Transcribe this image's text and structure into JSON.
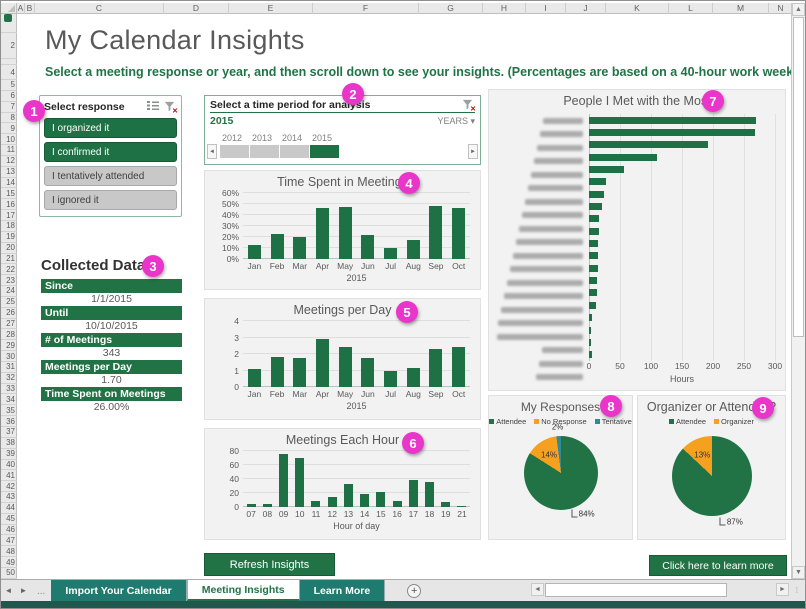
{
  "window": {
    "columns": [
      "A",
      "B",
      "C",
      "D",
      "E",
      "F",
      "G",
      "H",
      "I",
      "J",
      "K",
      "L",
      "M",
      "N"
    ],
    "rows": [
      "2",
      "4",
      "5",
      "6",
      "7",
      "8",
      "9",
      "10",
      "11",
      "12",
      "13",
      "14",
      "15",
      "16",
      "17",
      "18",
      "19",
      "20",
      "21",
      "22",
      "23",
      "24",
      "25",
      "26",
      "27",
      "28",
      "29",
      "30",
      "31",
      "32",
      "33",
      "34",
      "35",
      "36",
      "37",
      "38",
      "39",
      "40",
      "41",
      "42",
      "43",
      "44",
      "45",
      "46",
      "47",
      "48",
      "49",
      "50"
    ]
  },
  "header": {
    "title": "My Calendar Insights",
    "subtitle": "Select a meeting response or year, and then scroll down to see your insights. (Percentages are based on a 40-hour work week.)"
  },
  "slicer": {
    "title": "Select response",
    "items": [
      {
        "label": "I organized it",
        "selected": true
      },
      {
        "label": "I confirmed it",
        "selected": true
      },
      {
        "label": "I tentatively attended",
        "selected": false
      },
      {
        "label": "I ignored it",
        "selected": false
      }
    ]
  },
  "timeline": {
    "title": "Select a time period for analysis",
    "selected_period": "2015",
    "level_selector": "YEARS",
    "years": [
      {
        "label": "2012",
        "selected": false
      },
      {
        "label": "2013",
        "selected": false
      },
      {
        "label": "2014",
        "selected": false
      },
      {
        "label": "2015",
        "selected": true
      }
    ]
  },
  "collected_data": {
    "title": "Collected Data",
    "rows": [
      {
        "label": "Since",
        "value": "1/1/2015"
      },
      {
        "label": "Until",
        "value": "10/10/2015"
      },
      {
        "label": "# of Meetings",
        "value": "343"
      },
      {
        "label": "Meetings per Day",
        "value": "1.70"
      },
      {
        "label": "Time Spent on Meetings",
        "value": "26.00%"
      }
    ]
  },
  "actions": {
    "refresh": "Refresh Insights",
    "learn_more": "Click here to learn more"
  },
  "sheet_tabs": [
    {
      "label": "Import Your Calendar",
      "active": false
    },
    {
      "label": "Meeting Insights",
      "active": true
    },
    {
      "label": "Learn More",
      "active": false
    }
  ],
  "callouts": [
    "1",
    "2",
    "3",
    "4",
    "5",
    "6",
    "7",
    "8",
    "9"
  ],
  "colors": {
    "accent_green": "#217346",
    "bar_green": "#1e7145",
    "orange": "#f5a01e",
    "teal": "#2e8c96",
    "callout_pink": "#e935c9",
    "tab_teal": "#1f7a6f"
  },
  "chart_data": [
    {
      "type": "bar",
      "title": "Time Spent in Meetings",
      "categories": [
        "Jan",
        "Feb",
        "Mar",
        "Apr",
        "May",
        "Jun",
        "Jul",
        "Aug",
        "Sep",
        "Oct"
      ],
      "values": [
        13,
        23,
        20,
        46,
        47,
        22,
        10,
        17,
        48,
        46
      ],
      "yticks": [
        "0%",
        "10%",
        "20%",
        "30%",
        "40%",
        "50%",
        "60%"
      ],
      "ymax": 60,
      "xlabel": "2015",
      "grid": true,
      "unit": "percent"
    },
    {
      "type": "bar",
      "title": "Meetings per Day",
      "categories": [
        "Jan",
        "Feb",
        "Mar",
        "Apr",
        "May",
        "Jun",
        "Jul",
        "Aug",
        "Sep",
        "Oct"
      ],
      "values": [
        1.1,
        1.8,
        1.75,
        2.9,
        2.45,
        1.75,
        1.0,
        1.15,
        2.3,
        2.45
      ],
      "yticks": [
        "0",
        "1",
        "2",
        "3",
        "4"
      ],
      "ymax": 4,
      "xlabel": "2015",
      "grid": true,
      "unit": "count"
    },
    {
      "type": "bar",
      "title": "Meetings Each Hour",
      "categories": [
        "07",
        "08",
        "09",
        "10",
        "11",
        "12",
        "13",
        "14",
        "15",
        "16",
        "17",
        "18",
        "19",
        "21"
      ],
      "values": [
        5,
        4,
        76,
        70,
        9,
        15,
        33,
        19,
        22,
        8,
        38,
        36,
        7,
        2
      ],
      "yticks": [
        "0",
        "20",
        "40",
        "60",
        "80"
      ],
      "ymax": 80,
      "xlabel": "Hour of day",
      "grid": true,
      "unit": "count"
    },
    {
      "type": "hbar",
      "title": "People I Met with the Most",
      "names_redacted": true,
      "values": [
        270,
        268,
        192,
        110,
        57,
        28,
        24,
        21,
        16,
        16,
        15,
        14,
        14,
        13,
        13,
        12,
        5,
        4,
        4,
        5
      ],
      "xticks": [
        "0",
        "50",
        "100",
        "150",
        "200",
        "250",
        "300"
      ],
      "xmax": 300,
      "xlabel": "Hours",
      "grid": true
    },
    {
      "type": "pie",
      "title": "My Responses",
      "legend_position": "top",
      "slices": [
        {
          "label": "Attendee",
          "value": 84,
          "color": "#217346"
        },
        {
          "label": "No Response",
          "value": 14,
          "color": "#f5a01e"
        },
        {
          "label": "Tentative",
          "value": 2,
          "color": "#2e8c96"
        }
      ]
    },
    {
      "type": "pie",
      "title": "Organizer or Attendee?",
      "legend_position": "top",
      "slices": [
        {
          "label": "Attendee",
          "value": 87,
          "color": "#217346"
        },
        {
          "label": "Organizer",
          "value": 13,
          "color": "#f5a01e"
        }
      ]
    }
  ]
}
